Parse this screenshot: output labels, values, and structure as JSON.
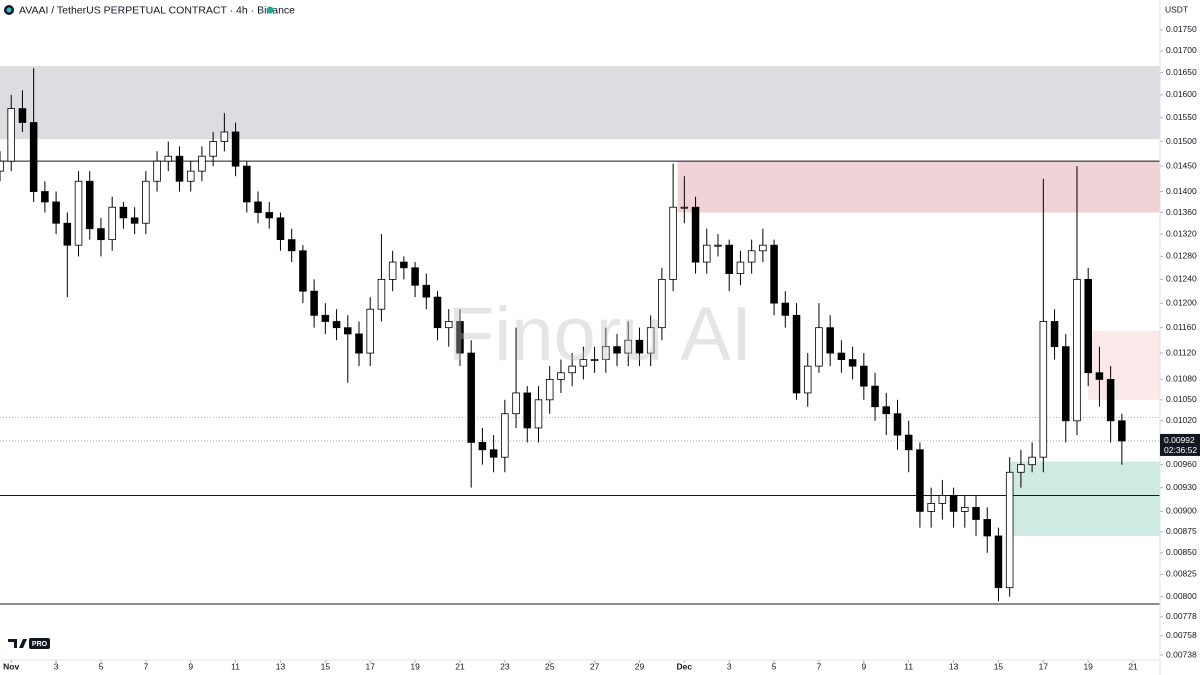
{
  "chart_data": {
    "type": "candlestick",
    "title": "AVAAI / TetherUS PERPETUAL CONTRACT · 4h · Binance",
    "currency": "USDT",
    "watermark": "Finoru AI",
    "logo_badge": "PRO",
    "log": true,
    "grid": false,
    "up_color": "#ffffff",
    "down_color": "#000000",
    "wick_color": "#000000",
    "xlim": [
      0.5,
      52.2
    ],
    "ylim": [
      0.00733,
      0.01824
    ],
    "yticks": [
      {
        "value": 0.0175,
        "label": "0.01750"
      },
      {
        "value": 0.017,
        "label": "0.01700"
      },
      {
        "value": 0.0165,
        "label": "0.01650"
      },
      {
        "value": 0.016,
        "label": "0.01600"
      },
      {
        "value": 0.0155,
        "label": "0.01550"
      },
      {
        "value": 0.015,
        "label": "0.01500"
      },
      {
        "value": 0.0145,
        "label": "0.01450"
      },
      {
        "value": 0.014,
        "label": "0.01400"
      },
      {
        "value": 0.0136,
        "label": "0.01360"
      },
      {
        "value": 0.0132,
        "label": "0.01320"
      },
      {
        "value": 0.0128,
        "label": "0.01280"
      },
      {
        "value": 0.0124,
        "label": "0.01240"
      },
      {
        "value": 0.012,
        "label": "0.01200"
      },
      {
        "value": 0.0116,
        "label": "0.01160"
      },
      {
        "value": 0.0112,
        "label": "0.01120"
      },
      {
        "value": 0.0108,
        "label": "0.01080"
      },
      {
        "value": 0.0105,
        "label": "0.01050"
      },
      {
        "value": 0.0102,
        "label": "0.01020"
      },
      {
        "value": 0.0096,
        "label": "0.00960"
      },
      {
        "value": 0.0093,
        "label": "0.00930"
      },
      {
        "value": 0.009,
        "label": "0.00900"
      },
      {
        "value": 0.00875,
        "label": "0.00875"
      },
      {
        "value": 0.0085,
        "label": "0.00850"
      },
      {
        "value": 0.00825,
        "label": "0.00825"
      },
      {
        "value": 0.008,
        "label": "0.00800"
      },
      {
        "value": 0.00778,
        "label": "0.00778"
      },
      {
        "value": 0.00758,
        "label": "0.00758"
      },
      {
        "value": 0.00738,
        "label": "0.00738"
      }
    ],
    "xticks": [
      {
        "value": 1,
        "label": "Nov"
      },
      3,
      5,
      7,
      9,
      11,
      13,
      15,
      17,
      19,
      21,
      23,
      25,
      27,
      29,
      {
        "value": 31,
        "label": "Dec"
      },
      {
        "value": 33,
        "label": "3"
      },
      {
        "value": 35,
        "label": "5"
      },
      {
        "value": 37,
        "label": "7"
      },
      {
        "value": 39,
        "label": "9"
      },
      {
        "value": 41,
        "label": "11"
      },
      {
        "value": 43,
        "label": "13"
      },
      {
        "value": 45,
        "label": "15"
      },
      {
        "value": 47,
        "label": "17"
      },
      {
        "value": 49,
        "label": "19"
      },
      {
        "value": 51,
        "label": "21"
      }
    ],
    "x": [
      0.5,
      1,
      1.5,
      2,
      2.5,
      3,
      3.5,
      4,
      4.5,
      5,
      5.5,
      6,
      6.5,
      7,
      7.5,
      8,
      8.5,
      9,
      9.5,
      10,
      10.5,
      11,
      11.5,
      12,
      12.5,
      13,
      13.5,
      14,
      14.5,
      15,
      15.5,
      16,
      16.5,
      17,
      17.5,
      18,
      18.5,
      19,
      19.5,
      20,
      20.5,
      21,
      21.5,
      22,
      22.5,
      23,
      23.5,
      24,
      24.5,
      25,
      25.5,
      26,
      26.5,
      27,
      27.5,
      28,
      28.5,
      29,
      29.5,
      30,
      30.5,
      31,
      31.5,
      32,
      32.5,
      33,
      33.5,
      34,
      34.5,
      35,
      35.5,
      36,
      36.5,
      37,
      37.5,
      38,
      38.5,
      39,
      39.5,
      40,
      40.5,
      41,
      41.5,
      42,
      42.5,
      43,
      43.5,
      44,
      44.5,
      45,
      45.5,
      46,
      46.5,
      47,
      47.5,
      48,
      48.5,
      49,
      49.5,
      50,
      50.5
    ],
    "open": [
      0.0144,
      0.0146,
      0.0157,
      0.0154,
      0.014,
      0.0138,
      0.0134,
      0.013,
      0.0142,
      0.0133,
      0.0131,
      0.0137,
      0.0135,
      0.0134,
      0.0142,
      0.0146,
      0.0147,
      0.0142,
      0.0144,
      0.0147,
      0.015,
      0.0152,
      0.0145,
      0.0138,
      0.0136,
      0.0135,
      0.0131,
      0.0129,
      0.0122,
      0.0118,
      0.0117,
      0.0116,
      0.0115,
      0.0112,
      0.0119,
      0.0124,
      0.0127,
      0.0126,
      0.0123,
      0.0121,
      0.0116,
      0.0117,
      0.0112,
      0.0099,
      0.0098,
      0.0097,
      0.0103,
      0.0106,
      0.0101,
      0.0105,
      0.0108,
      0.0109,
      0.011,
      0.0111,
      0.0111,
      0.0113,
      0.0112,
      0.0114,
      0.0112,
      0.0116,
      0.0124,
      0.0137,
      0.0137,
      0.0127,
      0.013,
      0.013,
      0.0125,
      0.0127,
      0.0129,
      0.013,
      0.012,
      0.0118,
      0.0106,
      0.011,
      0.0116,
      0.0112,
      0.0111,
      0.011,
      0.0107,
      0.0104,
      0.0103,
      0.01,
      0.0098,
      0.009,
      0.0091,
      0.0092,
      0.009,
      0.00905,
      0.0089,
      0.0087,
      0.0081,
      0.0095,
      0.0096,
      0.0097,
      0.0117,
      0.0113,
      0.0102,
      0.0124,
      0.0109,
      0.0108,
      0.0102
    ],
    "high": [
      0.0148,
      0.016,
      0.0161,
      0.0166,
      0.0142,
      0.014,
      0.0136,
      0.0144,
      0.0144,
      0.0135,
      0.0139,
      0.0138,
      0.0137,
      0.0144,
      0.0148,
      0.015,
      0.0149,
      0.0146,
      0.0149,
      0.0152,
      0.0156,
      0.0154,
      0.0146,
      0.014,
      0.0138,
      0.0136,
      0.0133,
      0.013,
      0.0124,
      0.012,
      0.0119,
      0.0118,
      0.0117,
      0.0121,
      0.0132,
      0.0129,
      0.0128,
      0.0127,
      0.0125,
      0.0122,
      0.0119,
      0.0119,
      0.0114,
      0.0101,
      0.01,
      0.0105,
      0.0116,
      0.0107,
      0.0107,
      0.011,
      0.0111,
      0.0112,
      0.0113,
      0.0113,
      0.0116,
      0.0115,
      0.0117,
      0.0116,
      0.0118,
      0.0126,
      0.01455,
      0.0143,
      0.0139,
      0.0133,
      0.0132,
      0.0131,
      0.0129,
      0.0131,
      0.0133,
      0.0131,
      0.0122,
      0.012,
      0.0112,
      0.012,
      0.0118,
      0.0114,
      0.0113,
      0.0112,
      0.0109,
      0.0106,
      0.0105,
      0.0102,
      0.0099,
      0.0093,
      0.0094,
      0.0093,
      0.0092,
      0.0092,
      0.00905,
      0.0088,
      0.0097,
      0.0098,
      0.0099,
      0.01425,
      0.0119,
      0.0115,
      0.0145,
      0.0126,
      0.0113,
      0.011,
      0.0103
    ],
    "low": [
      0.0142,
      0.0144,
      0.0152,
      0.0138,
      0.0136,
      0.0132,
      0.0121,
      0.0128,
      0.0131,
      0.0128,
      0.0129,
      0.0133,
      0.0132,
      0.0132,
      0.014,
      0.0144,
      0.014,
      0.014,
      0.0142,
      0.0145,
      0.0148,
      0.0143,
      0.0136,
      0.0134,
      0.0133,
      0.0129,
      0.0127,
      0.012,
      0.0116,
      0.0115,
      0.0114,
      0.01075,
      0.011,
      0.011,
      0.0117,
      0.0122,
      0.0124,
      0.0121,
      0.0119,
      0.0114,
      0.0113,
      0.011,
      0.0093,
      0.0096,
      0.0095,
      0.0095,
      0.0101,
      0.0099,
      0.0099,
      0.0103,
      0.0106,
      0.0107,
      0.0108,
      0.0109,
      0.0109,
      0.011,
      0.011,
      0.011,
      0.011,
      0.0114,
      0.0122,
      0.0134,
      0.0125,
      0.0125,
      0.0128,
      0.0122,
      0.0123,
      0.0125,
      0.0127,
      0.0118,
      0.0116,
      0.0105,
      0.0104,
      0.0109,
      0.011,
      0.0109,
      0.0108,
      0.0105,
      0.0102,
      0.01,
      0.0098,
      0.0095,
      0.0088,
      0.0088,
      0.0089,
      0.0088,
      0.0088,
      0.0087,
      0.0085,
      0.00795,
      0.008,
      0.0093,
      0.0095,
      0.0095,
      0.0111,
      0.0099,
      0.01,
      0.0107,
      0.0104,
      0.0099,
      0.0096
    ],
    "close": [
      0.0146,
      0.0157,
      0.0154,
      0.014,
      0.0138,
      0.0134,
      0.013,
      0.0142,
      0.0133,
      0.0131,
      0.0137,
      0.0135,
      0.0134,
      0.0142,
      0.0146,
      0.0147,
      0.0142,
      0.0144,
      0.0147,
      0.015,
      0.0152,
      0.0145,
      0.0138,
      0.0136,
      0.0135,
      0.0131,
      0.0129,
      0.0122,
      0.0118,
      0.0117,
      0.0116,
      0.0115,
      0.0112,
      0.0119,
      0.0124,
      0.0127,
      0.0126,
      0.0123,
      0.0121,
      0.0116,
      0.0117,
      0.0112,
      0.0099,
      0.0098,
      0.0097,
      0.0103,
      0.0106,
      0.0101,
      0.0105,
      0.0108,
      0.0109,
      0.011,
      0.0111,
      0.0111,
      0.0113,
      0.0112,
      0.0114,
      0.0112,
      0.0116,
      0.0124,
      0.0137,
      0.0137,
      0.0127,
      0.013,
      0.013,
      0.0125,
      0.0127,
      0.0129,
      0.013,
      0.012,
      0.0118,
      0.0106,
      0.011,
      0.0116,
      0.0112,
      0.0111,
      0.011,
      0.0107,
      0.0104,
      0.0103,
      0.01,
      0.0098,
      0.009,
      0.0091,
      0.0092,
      0.009,
      0.00905,
      0.0089,
      0.0087,
      0.0081,
      0.0095,
      0.0096,
      0.0097,
      0.0117,
      0.0113,
      0.0102,
      0.0124,
      0.0109,
      0.0108,
      0.0102,
      0.00992
    ],
    "zones": [
      {
        "color": "#dcdde0",
        "x": [
          0.5,
          52.2
        ],
        "y": [
          0.01505,
          0.01665
        ]
      },
      {
        "color": "#f0d3d7",
        "x": [
          30.7,
          52.2
        ],
        "y": [
          0.0136,
          0.0146
        ]
      },
      {
        "color": "#fbe9ea",
        "x": [
          49,
          52.2
        ],
        "y": [
          0.0105,
          0.01155
        ]
      },
      {
        "color": "#cfe9e3",
        "x": [
          45.5,
          52.2
        ],
        "y": [
          0.0087,
          0.00964
        ]
      }
    ],
    "hlines": [
      {
        "value": 0.0146,
        "style": "solid"
      },
      {
        "value": 0.0092,
        "style": "solid"
      },
      {
        "value": 0.00792,
        "style": "solid"
      },
      {
        "value": 0.01025,
        "style": "dotted"
      },
      {
        "value": 0.00992,
        "style": "dotted"
      }
    ],
    "last_price": {
      "value": 0.00992,
      "label": "0.00992"
    },
    "countdown": "02:36:52"
  }
}
